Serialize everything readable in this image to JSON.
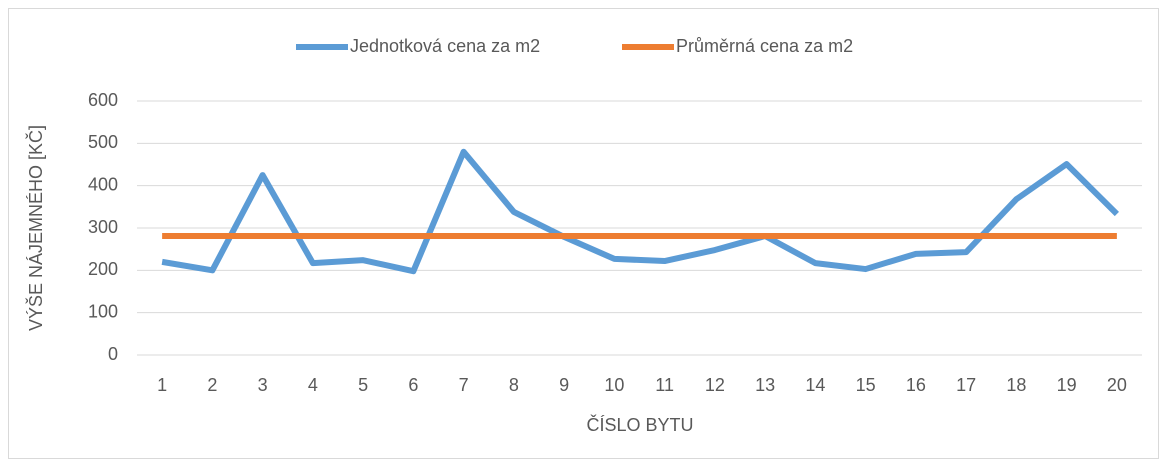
{
  "chart_data": {
    "type": "line",
    "categories": [
      "1",
      "2",
      "3",
      "4",
      "5",
      "6",
      "7",
      "8",
      "9",
      "10",
      "11",
      "12",
      "13",
      "14",
      "15",
      "16",
      "17",
      "18",
      "19",
      "20"
    ],
    "series": [
      {
        "name": "Jednotková cena za m2",
        "color": "#5b9bd5",
        "values": [
          220,
          200,
          425,
          217,
          224,
          198,
          480,
          338,
          279,
          227,
          222,
          248,
          281,
          217,
          203,
          239,
          243,
          368,
          451,
          333
        ]
      },
      {
        "name": "Průměrná cena za m2",
        "color": "#ed7d31",
        "values": [
          281,
          281,
          281,
          281,
          281,
          281,
          281,
          281,
          281,
          281,
          281,
          281,
          281,
          281,
          281,
          281,
          281,
          281,
          281,
          281
        ]
      }
    ],
    "x_label": "ČÍSLO BYTU",
    "y_label": "VÝŠE NÁJEMNÉHO [KČ]",
    "ylim": [
      0,
      600
    ],
    "yticks": [
      0,
      100,
      200,
      300,
      400,
      500,
      600
    ],
    "grid": true,
    "legend": "top"
  }
}
